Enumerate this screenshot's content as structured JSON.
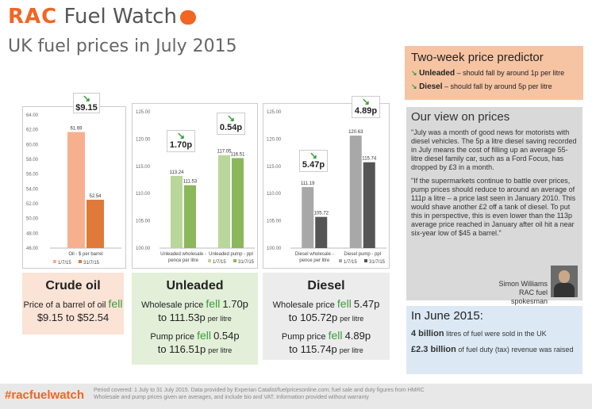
{
  "header": {
    "logo_rac": "RAC",
    "logo_text": "Fuel Watch",
    "title": "UK fuel prices in July 2015"
  },
  "chart_data": [
    {
      "type": "bar",
      "categories": [
        "Oil - $ per barrel"
      ],
      "series": [
        {
          "name": "1/7/15",
          "values": [
            61.69
          ]
        },
        {
          "name": "31/7/15",
          "values": [
            52.54
          ]
        }
      ],
      "ylim": [
        46,
        64
      ],
      "yticks": [
        "64.00",
        "62.00",
        "60.00",
        "58.00",
        "56.00",
        "54.00",
        "52.00",
        "50.00",
        "48.00",
        "46.00"
      ],
      "data_labels": [
        "61.69",
        "52.54"
      ],
      "colors": [
        "#f7b08e",
        "#e07a38"
      ],
      "callout": "$9.15"
    },
    {
      "type": "bar",
      "categories": [
        "Unleaded wholesale - pence per litre",
        "Unleaded pump - ppl"
      ],
      "series": [
        {
          "name": "1/7/15",
          "values": [
            113.24,
            117.05
          ]
        },
        {
          "name": "31/7/15",
          "values": [
            111.53,
            116.51
          ]
        }
      ],
      "ylim": [
        100,
        125
      ],
      "yticks": [
        "125.00",
        "120.00",
        "115.00",
        "110.00",
        "105.00",
        "100.00"
      ],
      "data_labels": [
        "113.24",
        "111.53",
        "117.05",
        "116.51"
      ],
      "colors": [
        "#b9d79a",
        "#8ab85a"
      ],
      "callouts": [
        "1.70p",
        "0.54p"
      ]
    },
    {
      "type": "bar",
      "categories": [
        "Diesel wholesale - pence per litre",
        "Diesel pump - ppl"
      ],
      "series": [
        {
          "name": "1/7/15",
          "values": [
            111.19,
            120.63
          ]
        },
        {
          "name": "31/7/15",
          "values": [
            105.72,
            115.74
          ]
        }
      ],
      "ylim": [
        100,
        125
      ],
      "yticks": [
        "125.00",
        "120.00",
        "115.00",
        "110.00",
        "105.00",
        "100.00"
      ],
      "data_labels": [
        "111.19",
        "105.72",
        "120.63",
        "115.74"
      ],
      "colors": [
        "#a8a8a8",
        "#555555"
      ],
      "callouts": [
        "5.47p",
        "4.89p"
      ]
    }
  ],
  "panels": {
    "crude": {
      "title": "Crude oil",
      "line1": "Price of a barrel of oil",
      "fell": "fell",
      "line2": "$9.15 to $52.54"
    },
    "unleaded": {
      "title": "Unleaded",
      "w1": "Wholesale price",
      "fell": "fell",
      "w_amt": "1.70p",
      "w2": "to 111.53p",
      "per": "per litre",
      "p1": "Pump price",
      "p_amt": "0.54p",
      "p2": "to 116.51p"
    },
    "diesel": {
      "title": "Diesel",
      "w1": "Wholesale price",
      "fell": "fell",
      "w_amt": "5.47p",
      "w2": "to 105.72p",
      "per": "per litre",
      "p1": "Pump price",
      "p_amt": "4.89p",
      "p2": "to 115.74p"
    }
  },
  "predictor": {
    "title": "Two-week price predictor",
    "unl_label": "Unleaded",
    "unl_text": "– should fall by around 1p per litre",
    "dsl_label": "Diesel",
    "dsl_text": "– should fall by around 5p per litre"
  },
  "view": {
    "title": "Our view on prices",
    "p1": "\"July was a month of good news for motorists with diesel vehicles. The 5p a litre diesel saving recorded in July means the cost of filling up an average 55-litre diesel family car, such as a Ford Focus, has dropped by £3 in a month.",
    "p2": "\"If the supermarkets continue to battle over prices, pump prices should reduce to around an average of 111p a litre – a price last seen in January 2010. This would shave another £2 off a tank of diesel. To put this in perspective, this is even lower than the 113p average price reached in January after oil hit a near six-year low of $45 a barrel.\"",
    "name": "Simon Williams",
    "role": "RAC fuel spokesman"
  },
  "june": {
    "title": "In June 2015:",
    "l1b": "4 billion",
    "l1": "litres of fuel were sold in the UK",
    "l2b": "£2.3 billion",
    "l2": "of fuel duty (tax) revenue was raised"
  },
  "footer": {
    "hashtag": "#racfuelwatch",
    "n1": "Period covered: 1 July to 31 July 2015. Data provided by Experian Catalist/fuelpricesonline.com; fuel sale and duty figures from HMRC",
    "n2": "Wholesale and pump prices given are averages, and include bio and VAT. Information provided without warranty"
  }
}
